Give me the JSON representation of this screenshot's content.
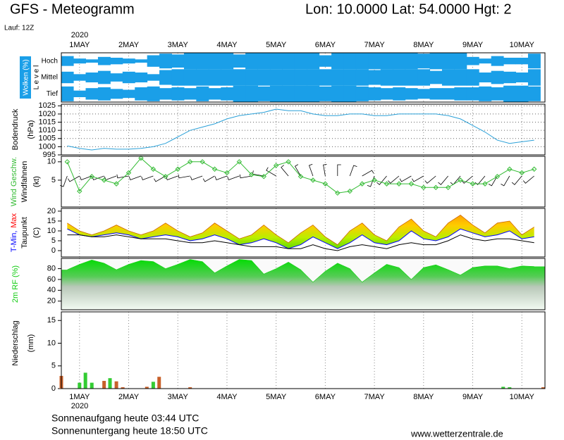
{
  "header": {
    "title": "GFS - Meteogramm",
    "location": "Lon: 10.0000 Lat: 54.0000 Hgt: 2",
    "run": "Lauf: 12Z"
  },
  "time_axis": {
    "year": "2020",
    "xlim": [
      0.63,
      10.47
    ],
    "xticks": [
      {
        "value": 1,
        "label": "1MAY"
      },
      {
        "value": 2,
        "label": "2MAY"
      },
      {
        "value": 3,
        "label": "3MAY"
      },
      {
        "value": 4,
        "label": "4MAY"
      },
      {
        "value": 5,
        "label": "5MAY"
      },
      {
        "value": 6,
        "label": "6MAY"
      },
      {
        "value": 7,
        "label": "7MAY"
      },
      {
        "value": 8,
        "label": "8MAY"
      },
      {
        "value": 9,
        "label": "9MAY"
      },
      {
        "value": 10,
        "label": "10MAY"
      }
    ],
    "x": [
      0.75,
      1.0,
      1.25,
      1.5,
      1.75,
      2.0,
      2.25,
      2.5,
      2.75,
      3.0,
      3.25,
      3.5,
      3.75,
      4.0,
      4.25,
      4.5,
      4.75,
      5.0,
      5.25,
      5.5,
      5.75,
      6.0,
      6.25,
      6.5,
      6.75,
      7.0,
      7.25,
      7.5,
      7.75,
      8.0,
      8.25,
      8.5,
      8.75,
      9.0,
      9.25,
      9.5,
      9.75,
      10.0,
      10.25
    ]
  },
  "chart_data": [
    {
      "type": "cloud",
      "ylabel": "Wolken (%)",
      "level_label": "L e v e l",
      "color": "#1a9fe8",
      "series": [
        {
          "name": "Hoch",
          "values": [
            60,
            30,
            20,
            50,
            40,
            30,
            20,
            70,
            90,
            80,
            100,
            100,
            100,
            100,
            80,
            100,
            100,
            100,
            100,
            100,
            100,
            70,
            100,
            100,
            100,
            100,
            100,
            100,
            100,
            90,
            100,
            100,
            100,
            50,
            30,
            60,
            40,
            40,
            90
          ]
        },
        {
          "name": "Mittel",
          "values": [
            70,
            40,
            60,
            80,
            50,
            70,
            60,
            40,
            90,
            100,
            100,
            100,
            100,
            100,
            100,
            100,
            100,
            100,
            100,
            100,
            100,
            100,
            100,
            100,
            100,
            90,
            100,
            100,
            100,
            100,
            80,
            100,
            100,
            100,
            60,
            80,
            70,
            60,
            100
          ]
        },
        {
          "name": "Tief",
          "values": [
            90,
            40,
            70,
            80,
            60,
            50,
            80,
            90,
            70,
            80,
            70,
            90,
            70,
            80,
            100,
            100,
            90,
            100,
            100,
            100,
            100,
            90,
            100,
            100,
            90,
            80,
            70,
            80,
            70,
            60,
            70,
            70,
            80,
            80,
            90,
            80,
            100,
            100,
            90
          ]
        }
      ]
    },
    {
      "type": "line",
      "ylabel": [
        "Bodendruck",
        "(hPa)"
      ],
      "ylim": [
        995,
        1026
      ],
      "yticks": [
        995,
        1000,
        1005,
        1010,
        1015,
        1020,
        1025
      ],
      "grid": true,
      "series": [
        {
          "color": "#2aa0d8",
          "values": [
            1000.5,
            999,
            998,
            999,
            998.5,
            998.5,
            999,
            1000,
            1002,
            1006,
            1010,
            1012,
            1014,
            1017,
            1019,
            1020,
            1021,
            1023,
            1022,
            1022,
            1020,
            1019,
            1019,
            1020,
            1020,
            1019,
            1019,
            1020,
            1020,
            1020,
            1020,
            1019,
            1017,
            1013,
            1009,
            1004,
            1002,
            1003,
            1004
          ]
        }
      ]
    },
    {
      "type": "wind",
      "unit": "(kt)",
      "ylim": [
        -2.3,
        11.5
      ],
      "yticks": [
        5,
        10
      ],
      "series": [
        {
          "name": "Wind Geschw.",
          "color": "#33bb33",
          "values": [
            10,
            2,
            6,
            5,
            4,
            7,
            11,
            8,
            6,
            8,
            10,
            10,
            8,
            7,
            10,
            6.5,
            6,
            9,
            10,
            6,
            5,
            4,
            1.5,
            2,
            4,
            5,
            4,
            4,
            4,
            3,
            3,
            3,
            5,
            4,
            4,
            6,
            8,
            7,
            8
          ]
        },
        {
          "name": "Windfahnen",
          "color": "#000000",
          "values": [
            200,
            240,
            250,
            250,
            250,
            260,
            250,
            250,
            240,
            250,
            260,
            250,
            240,
            250,
            250,
            260,
            280,
            300,
            320,
            330,
            340,
            350,
            0,
            20,
            60,
            200,
            220,
            230,
            240,
            240,
            230,
            220,
            220,
            230,
            220,
            210,
            210,
            220,
            230
          ]
        }
      ]
    },
    {
      "type": "temperature",
      "unit": "(C)",
      "ylim": [
        -3.2,
        21.4
      ],
      "yticks": [
        0,
        5,
        10,
        15,
        20
      ],
      "series": [
        {
          "name": "T-Min,",
          "color": "#0000ff",
          "values": [
            11,
            8,
            7,
            8,
            9,
            8,
            6,
            7,
            8,
            7,
            5,
            6,
            8,
            6,
            3,
            4,
            6,
            4,
            1,
            3,
            7,
            4,
            1,
            4,
            8,
            4,
            3,
            5,
            10,
            6,
            5,
            7,
            11,
            9,
            7,
            8,
            10,
            6,
            7
          ]
        },
        {
          "name": "Max",
          "color": "#ff0000",
          "values": [
            14,
            10,
            8,
            10,
            13,
            10,
            8,
            10,
            14,
            10,
            7,
            9,
            14,
            10,
            6,
            8,
            13,
            8,
            4,
            9,
            13,
            7,
            3,
            10,
            14,
            8,
            5,
            12,
            16,
            10,
            7,
            14,
            18,
            13,
            9,
            14,
            15,
            8,
            12
          ]
        },
        {
          "name": "Taupunkt",
          "color": "#000000",
          "values": [
            8,
            8,
            7,
            7,
            8,
            7,
            6,
            6,
            6,
            5,
            4,
            4,
            5,
            4,
            3,
            2,
            2,
            2,
            1,
            1,
            3,
            1,
            0,
            2,
            3,
            2,
            1,
            3,
            4,
            3,
            3,
            5,
            8,
            6,
            5,
            6,
            6,
            5,
            4
          ]
        }
      ]
    },
    {
      "type": "area",
      "ylabel": "2m RF (%)",
      "ylim": [
        4,
        99
      ],
      "yticks": [
        20,
        40,
        60,
        80
      ],
      "series": [
        {
          "color": "#11cc11",
          "values": [
            78,
            88,
            96,
            90,
            78,
            88,
            95,
            93,
            80,
            88,
            97,
            93,
            72,
            85,
            97,
            95,
            70,
            80,
            92,
            78,
            55,
            75,
            90,
            80,
            55,
            72,
            88,
            82,
            60,
            82,
            87,
            78,
            68,
            82,
            85,
            85,
            80,
            85,
            84
          ]
        }
      ]
    },
    {
      "type": "bar",
      "ylabel": [
        "Niederschlag",
        "(mm)"
      ],
      "ylim": [
        0,
        16.9
      ],
      "yticks": [
        0,
        5,
        10,
        15
      ],
      "x": [
        0.63,
        1.0,
        1.12,
        1.25,
        1.5,
        1.62,
        1.75,
        1.88,
        2.37,
        2.5,
        2.62,
        3.25,
        9.62,
        9.75,
        10.45
      ],
      "series": [
        {
          "color": "#c8602a",
          "values": [
            2.8,
            0,
            0,
            0,
            1.7,
            0,
            1.6,
            0.3,
            0.4,
            0,
            2.6,
            0.3,
            0,
            0,
            0.3
          ]
        },
        {
          "color": "#33cc33",
          "values": [
            0,
            1.3,
            3.5,
            1.3,
            0,
            2.3,
            0,
            0,
            0,
            1.5,
            0,
            0,
            0.4,
            0.3,
            0
          ]
        }
      ]
    }
  ],
  "footer": {
    "sunrise": "Sonnenaufgang heute 03:44 UTC",
    "sunset": "Sonnenuntergang heute 18:50 UTC",
    "source": "www.wetterzentrale.de"
  }
}
